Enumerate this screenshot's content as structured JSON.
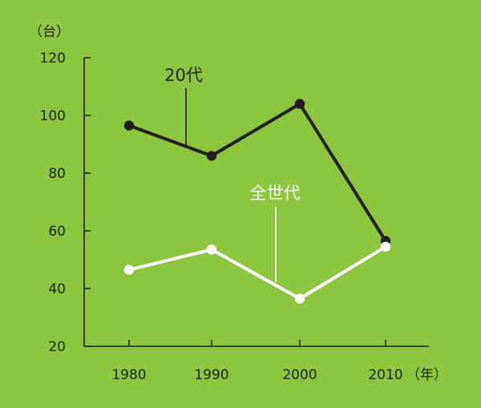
{
  "chart_data": {
    "type": "line",
    "title": "",
    "y_unit": "（台）",
    "x_unit": "（年）",
    "x": [
      1980,
      1990,
      2000,
      2010
    ],
    "x_tick_labels": [
      "1980",
      "1990",
      "2000",
      "2010"
    ],
    "ylim": [
      20,
      120
    ],
    "y_ticks": [
      20,
      40,
      60,
      80,
      100,
      120
    ],
    "y_tick_labels": [
      "20",
      "40",
      "60",
      "80",
      "100",
      "120"
    ],
    "grid": false,
    "legend": "none",
    "series": [
      {
        "name": "20代",
        "values": [
          96.5,
          86,
          104,
          56.5
        ],
        "color": "#231f20"
      },
      {
        "name": "全世代",
        "values": [
          46.5,
          53.5,
          36.5,
          54.5
        ],
        "color": "#ffffff"
      }
    ],
    "colors": {
      "background": "#8cc63f",
      "axis": "#231f20"
    }
  }
}
